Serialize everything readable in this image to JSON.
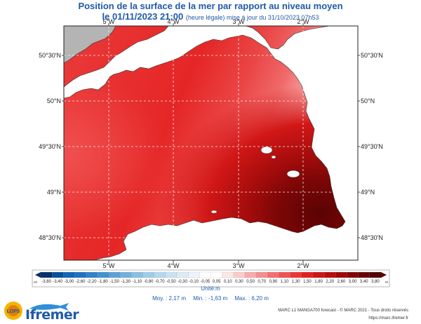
{
  "title": {
    "line1": "Position de la surface de la mer par rapport au niveau moyen",
    "line2_main": "le 01/11/2023 21:00",
    "line2_small": "(heure légale) mise à jour du 31/10/2023 07h53"
  },
  "axes": {
    "lon_ticks": [
      "5°W",
      "4°W",
      "3°W",
      "2°W"
    ],
    "lat_ticks": [
      "50°30'N",
      "50°N",
      "49°30'N",
      "49°N",
      "48°30'N"
    ],
    "lon_values": [
      -5,
      -4,
      -3,
      -2
    ],
    "lat_values": [
      50.5,
      50.0,
      49.5,
      49.0,
      48.5
    ]
  },
  "colorbar": {
    "labels": [
      "-3,80",
      "-3,40",
      "-3,00",
      "-2,60",
      "-2,20",
      "-1,80",
      "-1,50",
      "-1,30",
      "-1,10",
      "-0,90",
      "-0,70",
      "-0,50",
      "-0,30",
      "-0,10",
      "-0,05",
      "0,05",
      "0,10",
      "0,30",
      "0,50",
      "0,70",
      "0,90",
      "1,10",
      "1,30",
      "1,50",
      "1,80",
      "2,20",
      "2,60",
      "3,00",
      "3,40",
      "3,80"
    ],
    "colors": [
      "#08306b",
      "#08509c",
      "#1565b8",
      "#2171c1",
      "#3282c9",
      "#4292d0",
      "#5ba1d6",
      "#73b0dc",
      "#8abfe2",
      "#a0cce8",
      "#b6d8ee",
      "#c8e2f3",
      "#dceaf6",
      "#ecf3fa",
      "#ffffff",
      "#ffffff",
      "#fde6e6",
      "#fbcaca",
      "#f8abab",
      "#f58e8e",
      "#f27070",
      "#ef5353",
      "#ec3636",
      "#e11f1f",
      "#cf1414",
      "#b80d0d",
      "#9e0808",
      "#830505",
      "#690303",
      "#520202"
    ],
    "unit_label": "Unité:m",
    "low_end": "-∞",
    "high_end": "∞"
  },
  "stats": {
    "moy": "Moy. : 2,17 m",
    "min": "Min. : -1,63 m",
    "max": "Max. : 6,20 m"
  },
  "footer": {
    "line1": "MARC L1 MANGA700 forecast - © MARC 2021 - Tous droits réservés",
    "line2": "https://marc.ifremer.fr"
  },
  "logos": {
    "lops": "LOPS",
    "ifremer": "Ifremer"
  },
  "colors": {
    "title": "#1f5aa8",
    "land": "#ffffff",
    "uk_land": "#b4b4b4"
  }
}
